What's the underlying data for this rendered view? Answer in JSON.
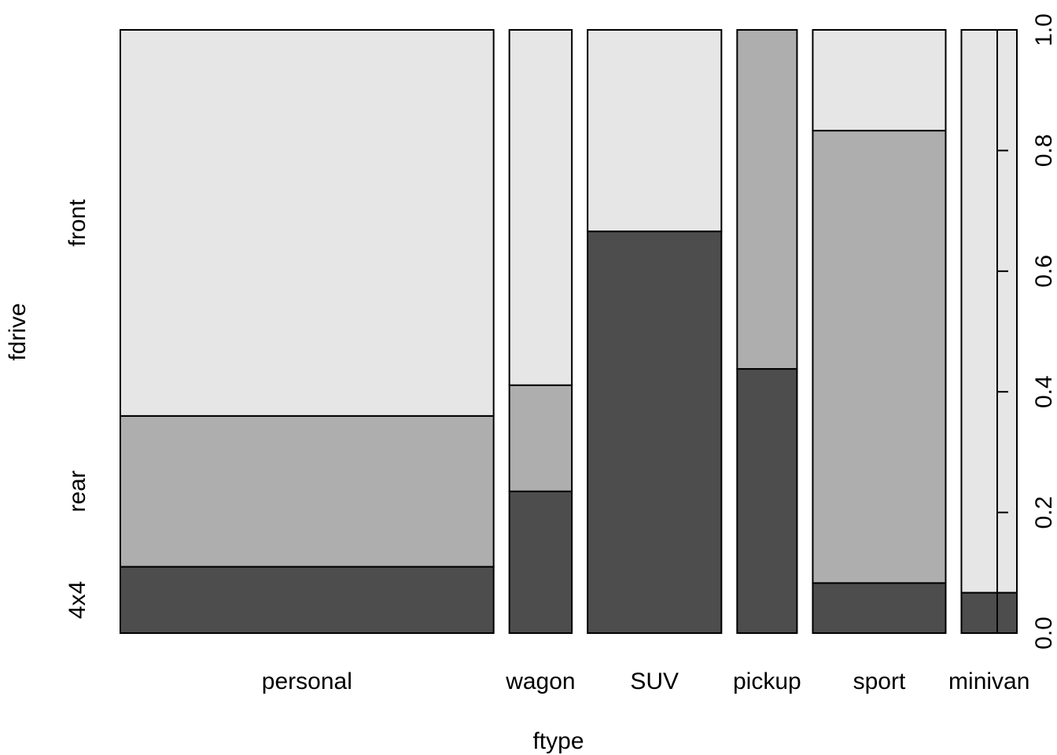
{
  "chart_data": {
    "type": "spineplot",
    "xlabel": "ftype",
    "ylabel": "fdrive",
    "ylim": [
      0,
      1
    ],
    "y_ticks": [
      "0.0",
      "0.2",
      "0.4",
      "0.6",
      "0.8",
      "1.0"
    ],
    "left_axis_labels": [
      "4x4",
      "rear",
      "front"
    ],
    "legend": "none",
    "grid": false,
    "colors": {
      "4x4": "#4d4d4d",
      "rear": "#aeaeae",
      "front": "#e6e6e6"
    },
    "categories": [
      "personal",
      "wagon",
      "SUV",
      "pickup",
      "sport",
      "minivan"
    ],
    "widths": [
      0.424,
      0.071,
      0.152,
      0.068,
      0.151,
      0.063
    ],
    "series": [
      {
        "name": "4x4",
        "values": [
          0.11,
          0.235,
          0.666,
          0.438,
          0.083,
          0.067
        ]
      },
      {
        "name": "rear",
        "values": [
          0.25,
          0.176,
          0.0,
          0.562,
          0.75,
          0.0
        ]
      },
      {
        "name": "front",
        "values": [
          0.64,
          0.589,
          0.334,
          0.0,
          0.167,
          0.933
        ]
      }
    ]
  }
}
